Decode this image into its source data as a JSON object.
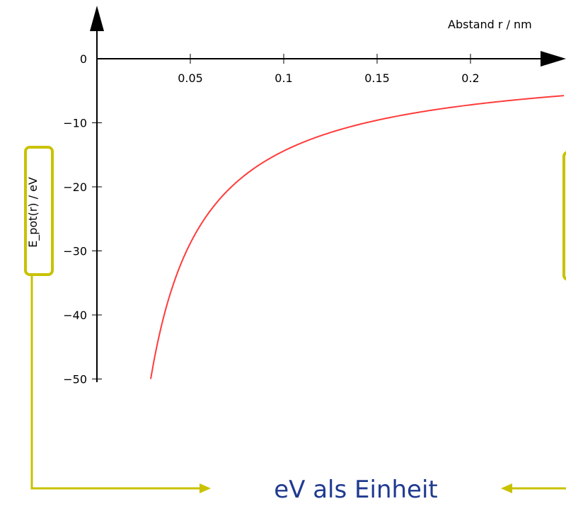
{
  "chart_data": {
    "type": "line",
    "title": "",
    "xlabel": "Abstand r / nm",
    "ylabel": "E_pot(r) / eV",
    "xlim": [
      0,
      0.25
    ],
    "ylim": [
      -50,
      0
    ],
    "x_ticks": [
      0.05,
      0.1,
      0.15,
      0.2
    ],
    "x_tick_labels": [
      "0.05",
      "0.1",
      "0.15",
      "0.2"
    ],
    "y_ticks": [
      0,
      -10,
      -20,
      -30,
      -40,
      -50
    ],
    "y_tick_labels": [
      "0",
      "−10",
      "−20",
      "−30",
      "−40",
      "−50"
    ],
    "grid": false,
    "series": [
      {
        "x": [
          0.0288,
          0.035,
          0.04,
          0.05,
          0.06,
          0.08,
          0.1,
          0.12,
          0.15,
          0.2,
          0.25
        ],
        "y": [
          -50,
          -41.1,
          -36.0,
          -28.8,
          -24.0,
          -18.0,
          -14.4,
          -12.0,
          -9.6,
          -7.2,
          -5.76
        ],
        "color": "#ff3b3b"
      }
    ]
  },
  "annotation": {
    "text": "eV als Einheit",
    "color": "#c9c200",
    "text_color": "#1f3a8f"
  }
}
